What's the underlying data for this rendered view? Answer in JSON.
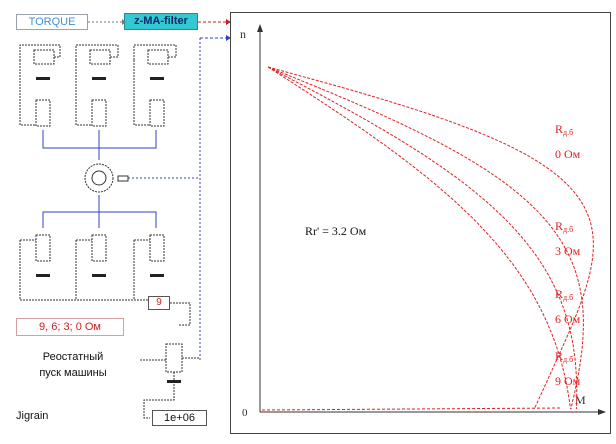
{
  "blocks": {
    "torque_label": "TORQUE",
    "filter_label": "z-MA-filter",
    "mux_label": "9",
    "values_display": "9, 6; 3; 0  Ом",
    "description": "Реостатный\nпуск машины",
    "jigrain_label": "Jigrain",
    "time_value": "1e+06"
  },
  "colors": {
    "curve": "#e02020",
    "wire_blue": "#3040c0",
    "wire_gray": "#555555",
    "filter_fill": "#33c8d2"
  },
  "chart_data": {
    "type": "line",
    "y_axis_label": "n",
    "x_axis_label": "M",
    "origin_label": "0",
    "annotation": "Rr' = 3.2 Ом",
    "series": [
      {
        "name_main": "R",
        "name_sub": "д.б",
        "value": "0 Ом",
        "peak_torque": 0.98,
        "slip_peak": 0.52
      },
      {
        "name_main": "R",
        "name_sub": "д.б",
        "value": "3 Ом",
        "peak_torque": 0.95,
        "slip_peak": 0.75
      },
      {
        "name_main": "R",
        "name_sub": "д.б",
        "value": "6 Ом",
        "peak_torque": 0.93,
        "slip_peak": 0.95
      },
      {
        "name_main": "R",
        "name_sub": "д.б",
        "value": "9 Ом",
        "peak_torque": 0.92,
        "slip_peak": 1.15
      }
    ]
  }
}
